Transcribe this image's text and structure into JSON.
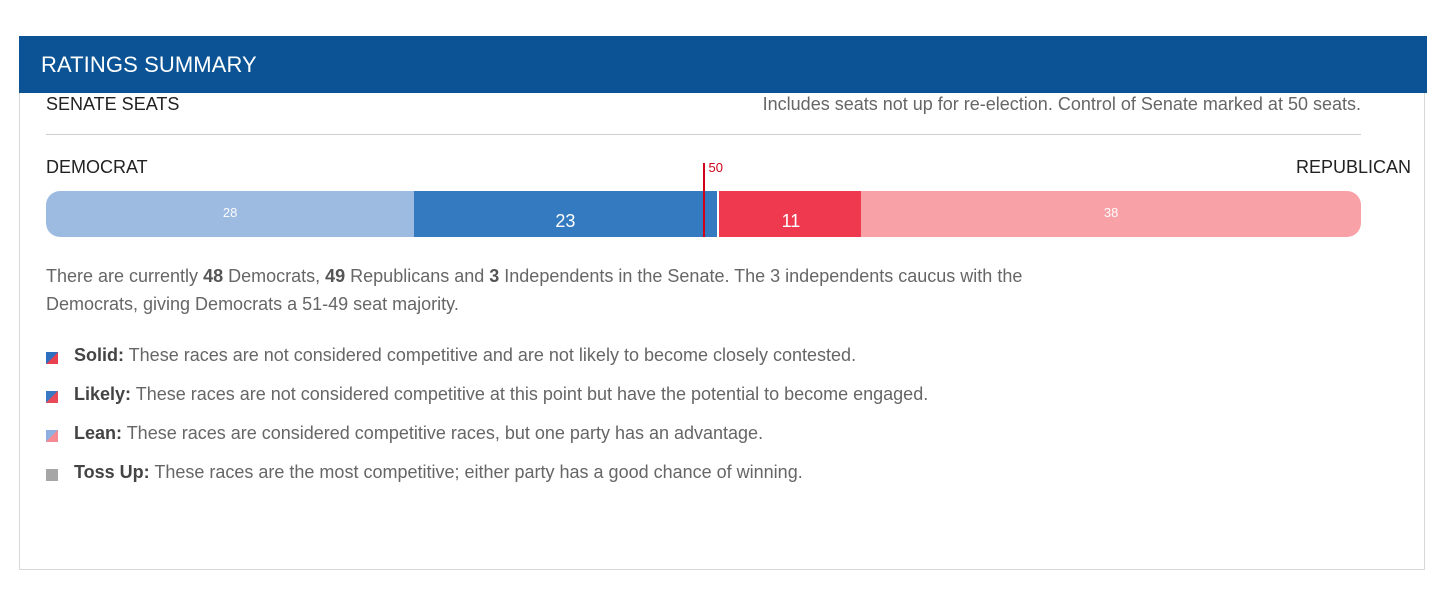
{
  "header": {
    "title": "RATINGS SUMMARY"
  },
  "section": {
    "label": "SENATE SEATS",
    "note": "Includes seats not up for re-election. Control of Senate marked at 50 seats."
  },
  "parties": {
    "left": "DEMOCRAT",
    "right": "REPUBLICAN"
  },
  "chart_data": {
    "type": "bar",
    "orientation": "horizontal-stacked",
    "total": 100,
    "marker": {
      "value": 50,
      "label": "50",
      "color": "#d0021b"
    },
    "segments": [
      {
        "value": 28,
        "label": "28",
        "color": "#9dbbe0"
      },
      {
        "value": 23,
        "label": "23",
        "color": "#337ac0"
      },
      {
        "value": 11,
        "label": "11",
        "color": "#ee394e"
      },
      {
        "value": 38,
        "label": "38",
        "color": "#f8a2a8"
      }
    ]
  },
  "summary": {
    "p1": "There are currently ",
    "dems": "48",
    "p2": " Democrats, ",
    "reps": "49",
    "p3": " Republicans and ",
    "inds": "3",
    "p4": " Independents in the Senate. The 3 independents caucus with the Democrats, giving Democrats a 51-49 seat majority."
  },
  "legend": [
    {
      "name": "Solid:",
      "text": " These races are not considered competitive and are not likely to become closely contested.",
      "swatch_colors": [
        "#2f6fbf",
        "#e8404f"
      ]
    },
    {
      "name": "Likely:",
      "text": " These races are not considered competitive at this point but have the potential to become engaged.",
      "swatch_colors": [
        "#3a78c4",
        "#e84a5a"
      ]
    },
    {
      "name": "Lean:",
      "text": " These races are considered competitive races, but one party has an advantage.",
      "swatch_colors": [
        "#8fb0de",
        "#f58a94"
      ]
    },
    {
      "name": "Toss Up:",
      "text": " These races are the most competitive; either party has a good chance of winning.",
      "swatch_colors": [
        "#a6a6a6",
        "#a6a6a6"
      ]
    }
  ]
}
